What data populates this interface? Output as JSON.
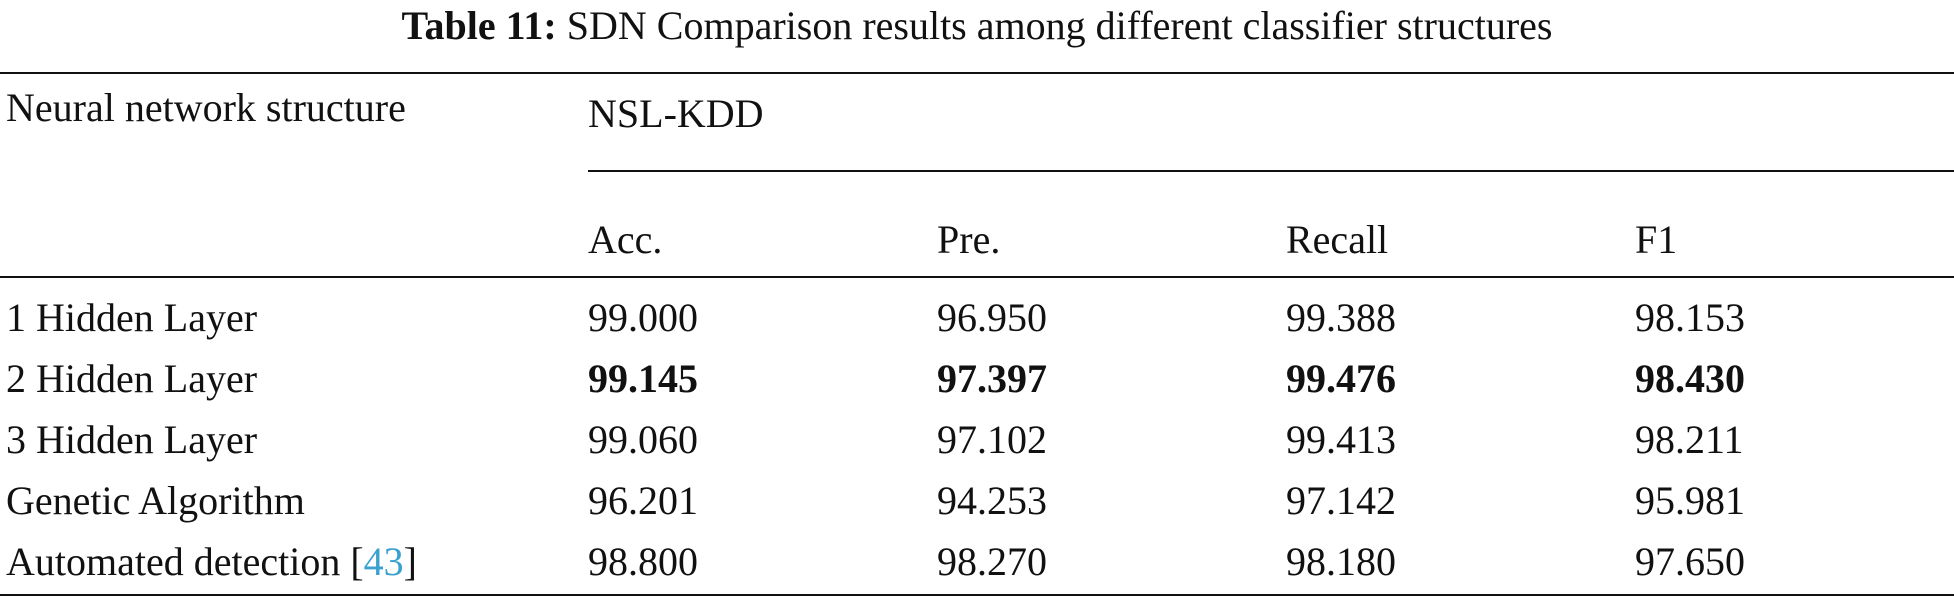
{
  "caption": {
    "label": "Table 11:",
    "text": "SDN Comparison results among different classifier structures"
  },
  "table": {
    "row_header": "Neural network structure",
    "dataset": "NSL-KDD",
    "columns": [
      "Acc.",
      "Pre.",
      "Recall",
      "F1"
    ],
    "rows": [
      {
        "name": "1 Hidden Layer",
        "ref": "",
        "values": [
          "99.000",
          "96.950",
          "99.388",
          "98.153"
        ],
        "bold": false
      },
      {
        "name": "2 Hidden Layer",
        "ref": "",
        "values": [
          "99.145",
          "97.397",
          "99.476",
          "98.430"
        ],
        "bold": true
      },
      {
        "name": "3 Hidden Layer",
        "ref": "",
        "values": [
          "99.060",
          "97.102",
          "99.413",
          "98.211"
        ],
        "bold": false
      },
      {
        "name": "Genetic Algorithm",
        "ref": "",
        "values": [
          "96.201",
          "94.253",
          "97.142",
          "95.981"
        ],
        "bold": false
      },
      {
        "name": "Automated detection [",
        "ref": "43",
        "ref_close": "]",
        "values": [
          "98.800",
          "98.270",
          "98.180",
          "97.650"
        ],
        "bold": false
      }
    ]
  }
}
